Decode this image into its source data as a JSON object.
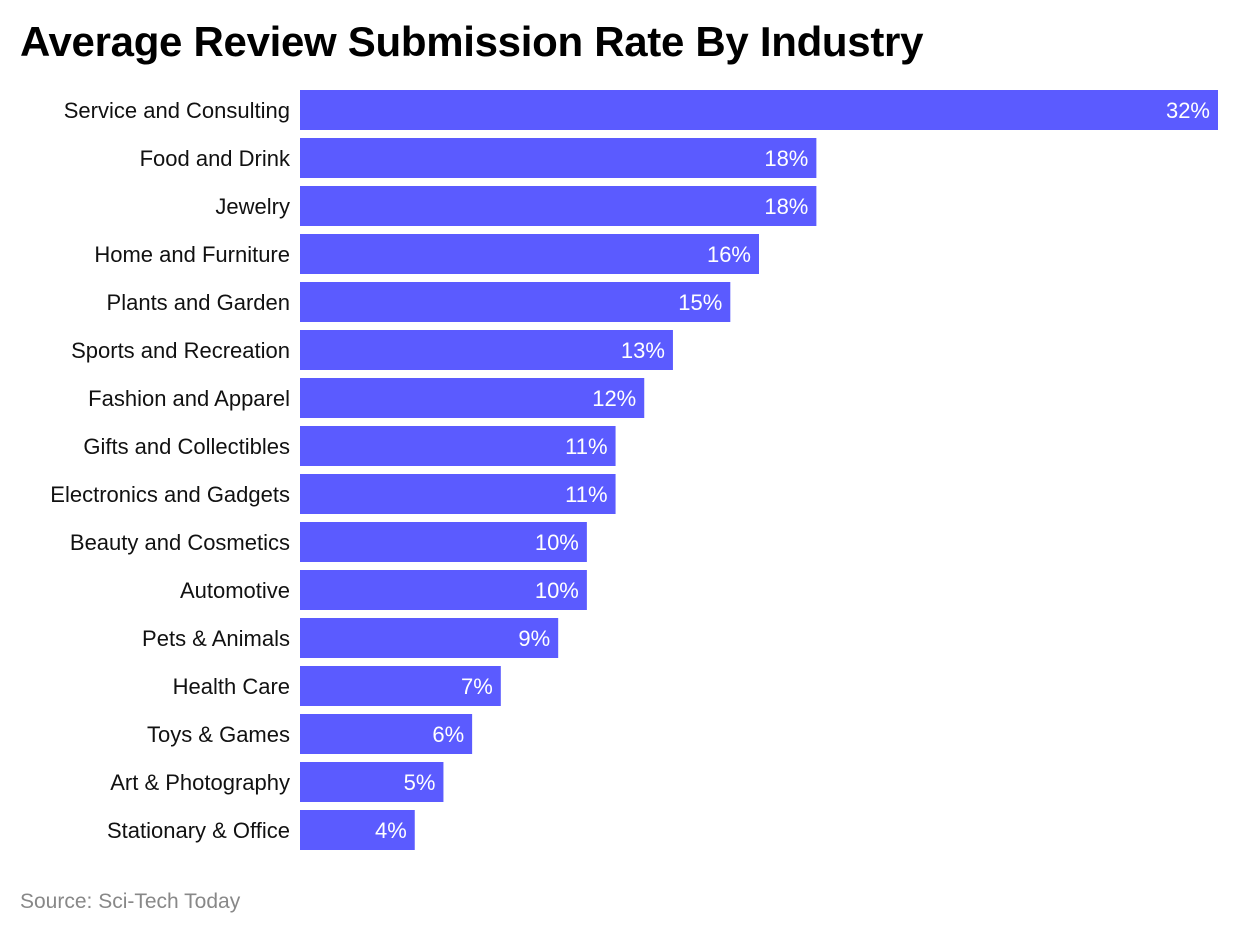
{
  "chart_data": {
    "type": "bar",
    "orientation": "horizontal",
    "title": "Average Review Submission Rate By Industry",
    "categories": [
      "Service and Consulting",
      "Food and Drink",
      "Jewelry",
      "Home and Furniture",
      "Plants and Garden",
      "Sports and Recreation",
      "Fashion and Apparel",
      "Gifts and Collectibles",
      "Electronics and Gadgets",
      "Beauty and Cosmetics",
      "Automotive",
      "Pets & Animals",
      "Health Care",
      "Toys & Games",
      "Art & Photography",
      "Stationary & Office"
    ],
    "values": [
      32,
      18,
      18,
      16,
      15,
      13,
      12,
      11,
      11,
      10,
      10,
      9,
      7,
      6,
      5,
      4
    ],
    "value_labels": [
      "32%",
      "18%",
      "18%",
      "16%",
      "15%",
      "13%",
      "12%",
      "11%",
      "11%",
      "10%",
      "10%",
      "9%",
      "7%",
      "6%",
      "5%",
      "4%"
    ],
    "unit": "%",
    "xlim": [
      0,
      32
    ],
    "bar_color": "#5B5BFF",
    "grid": false,
    "legend": "none",
    "source": "Source: Sci-Tech Today"
  }
}
